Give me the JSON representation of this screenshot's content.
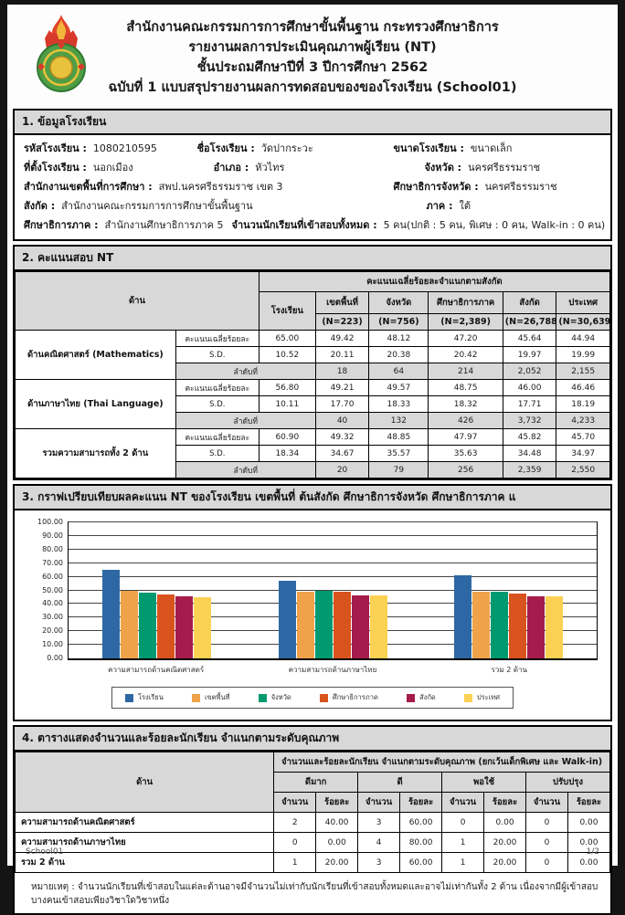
{
  "header": {
    "line1": "สำนักงานคณะกรรมการการศึกษาขั้นพื้นฐาน กระทรวงศึกษาธิการ",
    "line2": "รายงานผลการประเมินคุณภาพผู้เรียน (NT)",
    "line3": "ชั้นประถมศึกษาปีที่ 3 ปีการศึกษา 2562",
    "line4": "ฉบับที่ 1 แบบสรุปรายงานผลการทดสอบของของโรงเรียน (School01)"
  },
  "section1": {
    "title": "1. ข้อมูลโรงเรียน",
    "fields": {
      "school_code": {
        "label": "รหัสโรงเรียน :",
        "value": "1080210595"
      },
      "school_name": {
        "label": "ชื่อโรงเรียน :",
        "value": "วัดปากระวะ"
      },
      "school_size": {
        "label": "ขนาดโรงเรียน :",
        "value": "ขนาดเล็ก"
      },
      "location": {
        "label": "ที่ตั้งโรงเรียน :",
        "value": "นอกเมือง"
      },
      "district": {
        "label": "อำเภอ :",
        "value": "หัวไทร"
      },
      "province": {
        "label": "จังหวัด :",
        "value": "นครศรีธรรมราช"
      },
      "area_office": {
        "label": "สำนักงานเขตพื้นที่การศึกษา :",
        "value": "สพป.นครศรีธรรมราช เขต 3"
      },
      "provincial_edu": {
        "label": "ศึกษาธิการจังหวัด :",
        "value": "นครศรีธรรมราช"
      },
      "affiliation": {
        "label": "สังกัด :",
        "value": "สำนักงานคณะกรรมการการศึกษาขั้นพื้นฐาน"
      },
      "region": {
        "label": "ภาค :",
        "value": "ใต้"
      },
      "regional_edu": {
        "label": "ศึกษาธิการภาค :",
        "value": "สำนักงานศึกษาธิการภาค 5"
      },
      "total_examinees": {
        "label": "จำนวนนักเรียนที่เข้าสอบทั้งหมด :",
        "value": "5 คน(ปกติ : 5 คน, พิเศษ : 0 คน, Walk-in : 0 คน)"
      }
    }
  },
  "section2": {
    "title": "2. คะแนนสอบ NT",
    "col_dan": "ด้าน",
    "col_group_header": "คะแนนเฉลี่ยร้อยละจำแนกตามสังกัด",
    "columns": [
      {
        "name": "โรงเรียน",
        "n": ""
      },
      {
        "name": "เขตพื้นที่",
        "n": "(N=223)"
      },
      {
        "name": "จังหวัด",
        "n": "(N=756)"
      },
      {
        "name": "ศึกษาธิการภาค",
        "n": "(N=2,389)"
      },
      {
        "name": "สังกัด",
        "n": "(N=26,788)"
      },
      {
        "name": "ประเทศ",
        "n": "(N=30,639)"
      }
    ],
    "row_labels": {
      "mean": "คะแนนเฉลี่ยร้อยละ",
      "sd": "S.D.",
      "rank": "ลำดับที่"
    },
    "groups": [
      {
        "name": "ด้านคณิตศาสตร์ (Mathematics)",
        "mean": [
          "65.00",
          "49.42",
          "48.12",
          "47.20",
          "45.64",
          "44.94"
        ],
        "sd": [
          "10.52",
          "20.11",
          "20.38",
          "20.42",
          "19.97",
          "19.99"
        ],
        "rank": [
          "18",
          "64",
          "214",
          "2,052",
          "2,155"
        ]
      },
      {
        "name": "ด้านภาษาไทย (Thai Language)",
        "mean": [
          "56.80",
          "49.21",
          "49.57",
          "48.75",
          "46.00",
          "46.46"
        ],
        "sd": [
          "10.11",
          "17.70",
          "18.33",
          "18.32",
          "17.71",
          "18.19"
        ],
        "rank": [
          "40",
          "132",
          "426",
          "3,732",
          "4,233"
        ]
      },
      {
        "name": "รวมความสามารถทั้ง 2 ด้าน",
        "mean": [
          "60.90",
          "49.32",
          "48.85",
          "47.97",
          "45.82",
          "45.70"
        ],
        "sd": [
          "18.34",
          "34.67",
          "35.57",
          "35.63",
          "34.48",
          "34.97"
        ],
        "rank": [
          "20",
          "79",
          "256",
          "2,359",
          "2,550"
        ]
      }
    ]
  },
  "section3": {
    "title": "3. กราฟเปรียบเทียบผลคะแนน NT ของโรงเรียน เขตพื้นที่  ต้นสังกัด ศึกษาธิการจังหวัด ศึกษาธิการภาค แ"
  },
  "chart_data": {
    "type": "bar",
    "categories": [
      "ความสามารถด้านคณิตศาสตร์",
      "ความสามารถด้านภาษาไทย",
      "รวม 2 ด้าน"
    ],
    "series": [
      {
        "name": "โรงเรียน",
        "color": "#2e68a4",
        "values": [
          65.0,
          56.8,
          60.9
        ]
      },
      {
        "name": "เขตพื้นที่",
        "color": "#f0a24a",
        "values": [
          49.42,
          49.21,
          49.32
        ]
      },
      {
        "name": "จังหวัด",
        "color": "#009970",
        "values": [
          48.12,
          49.57,
          48.85
        ]
      },
      {
        "name": "ศึกษาธิการภาค",
        "color": "#d9531e",
        "values": [
          47.2,
          48.75,
          47.97
        ]
      },
      {
        "name": "สังกัด",
        "color": "#a51c4c",
        "values": [
          45.64,
          46.0,
          45.82
        ]
      },
      {
        "name": "ประเทศ",
        "color": "#fbd154",
        "values": [
          44.94,
          46.46,
          45.7
        ]
      }
    ],
    "ylim": [
      0,
      100
    ],
    "ytick_step": 10,
    "grid": true,
    "legend_position": "bottom"
  },
  "section4": {
    "title": "4. ตารางแสดงจำนวนและร้อยละนักเรียน จำแนกตามระดับคุณภาพ",
    "col_dan": "ด้าน",
    "group_header": "จำนวนและร้อยละนักเรียน จำแนกตามระดับคุณภาพ (ยกเว้นเด็กพิเศษ และ  Walk-in)",
    "levels": [
      "ดีมาก",
      "ดี",
      "พอใช้",
      "ปรับปรุง"
    ],
    "sub_cols": {
      "count": "จำนวน",
      "percent": "ร้อยละ"
    },
    "rows": [
      {
        "name": "ความสามารถด้านคณิตศาสตร์",
        "values": [
          "2",
          "40.00",
          "3",
          "60.00",
          "0",
          "0.00",
          "0",
          "0.00"
        ]
      },
      {
        "name": "ความสามารถด้านภาษาไทย",
        "values": [
          "0",
          "0.00",
          "4",
          "80.00",
          "1",
          "20.00",
          "0",
          "0.00"
        ]
      },
      {
        "name": "รวม 2 ด้าน",
        "values": [
          "1",
          "20.00",
          "3",
          "60.00",
          "1",
          "20.00",
          "0",
          "0.00"
        ]
      }
    ],
    "note": "หมายเหตุ : จำนวนนักเรียนที่เข้าสอบในแต่ละด้านอาจมีจำนวนไม่เท่ากับนักเรียนที่เข้าสอบทั้งหมดและอาจไม่เท่ากันทั้ง 2 ด้าน เนื่องจากมีผู้เข้าสอบบางคนเข้าสอบเพียงวิชาใดวิชาหนึ่ง"
  },
  "footer": {
    "left": "School01",
    "right": "1/2"
  },
  "colors": {
    "section_header_bg": "#d8d8d8",
    "table_border": "#000000",
    "page_bg": "#fdfdfd",
    "surround_bg": "#141414"
  }
}
